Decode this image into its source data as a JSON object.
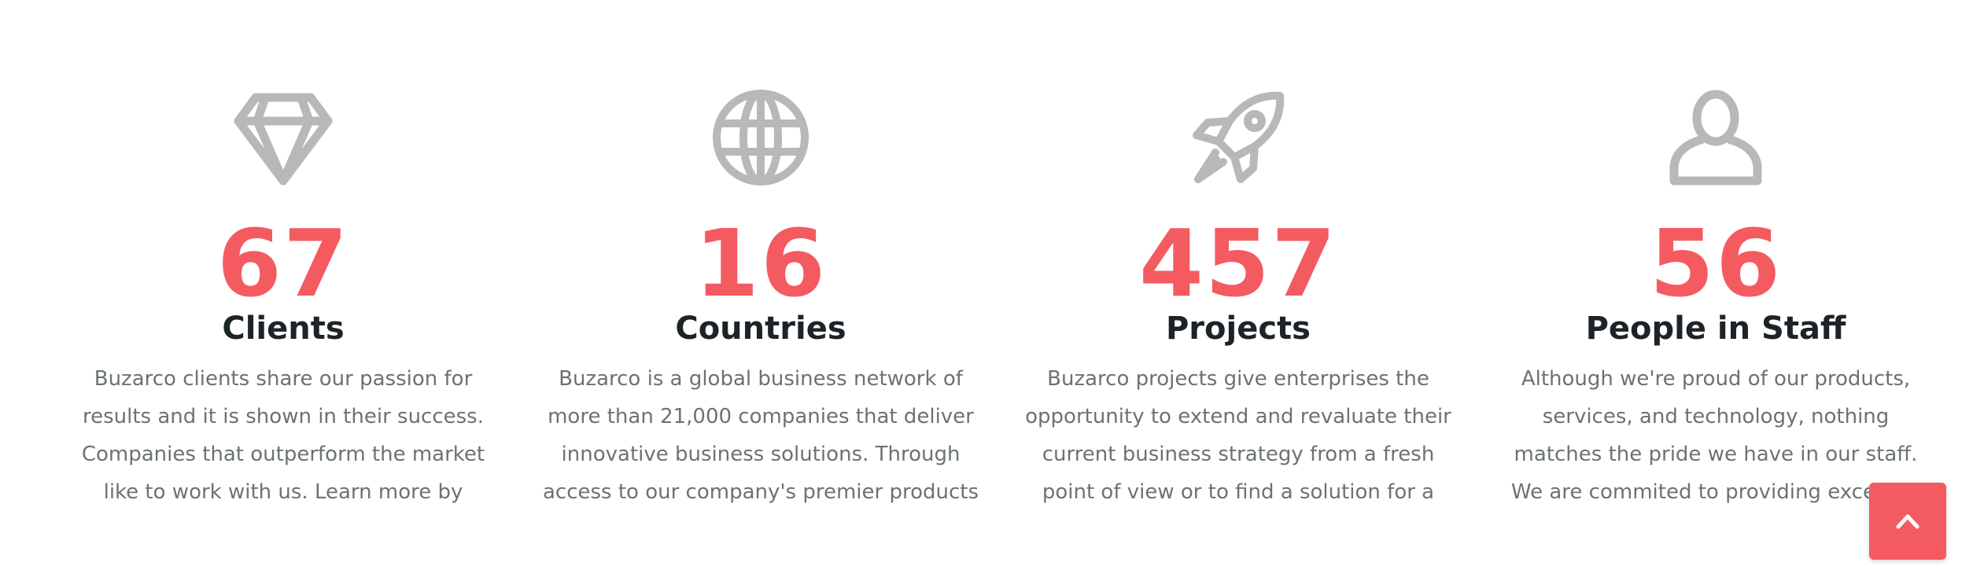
{
  "colors": {
    "accent": "#f35b61",
    "heading": "#1d2427",
    "text": "#6b7276",
    "icon": "#b8b8b8"
  },
  "stats": [
    {
      "icon": "diamond-icon",
      "number": "67",
      "label": "Clients",
      "description": "Buzarco clients share our passion for results and it is shown in their success. Companies that outperform the market like to work with us. Learn more by reading from our ..."
    },
    {
      "icon": "globe-icon",
      "number": "16",
      "label": "Countries",
      "description": "Buzarco is a global business network of more than 21,000 companies that deliver innovative business solutions. Through access to our company's premier products"
    },
    {
      "icon": "rocket-icon",
      "number": "457",
      "label": "Projects",
      "description": "Buzarco projects give enterprises the opportunity to extend and revaluate their current business strategy from a fresh point of view or to find a solution for a topic ..."
    },
    {
      "icon": "person-icon",
      "number": "56",
      "label": "People in Staff",
      "description": "Although we're proud of our products, services, and technology, nothing matches the pride we have in our staff. We are commited to providing excellent customer"
    }
  ],
  "scroll_top": {
    "icon": "chevron-up-icon"
  }
}
